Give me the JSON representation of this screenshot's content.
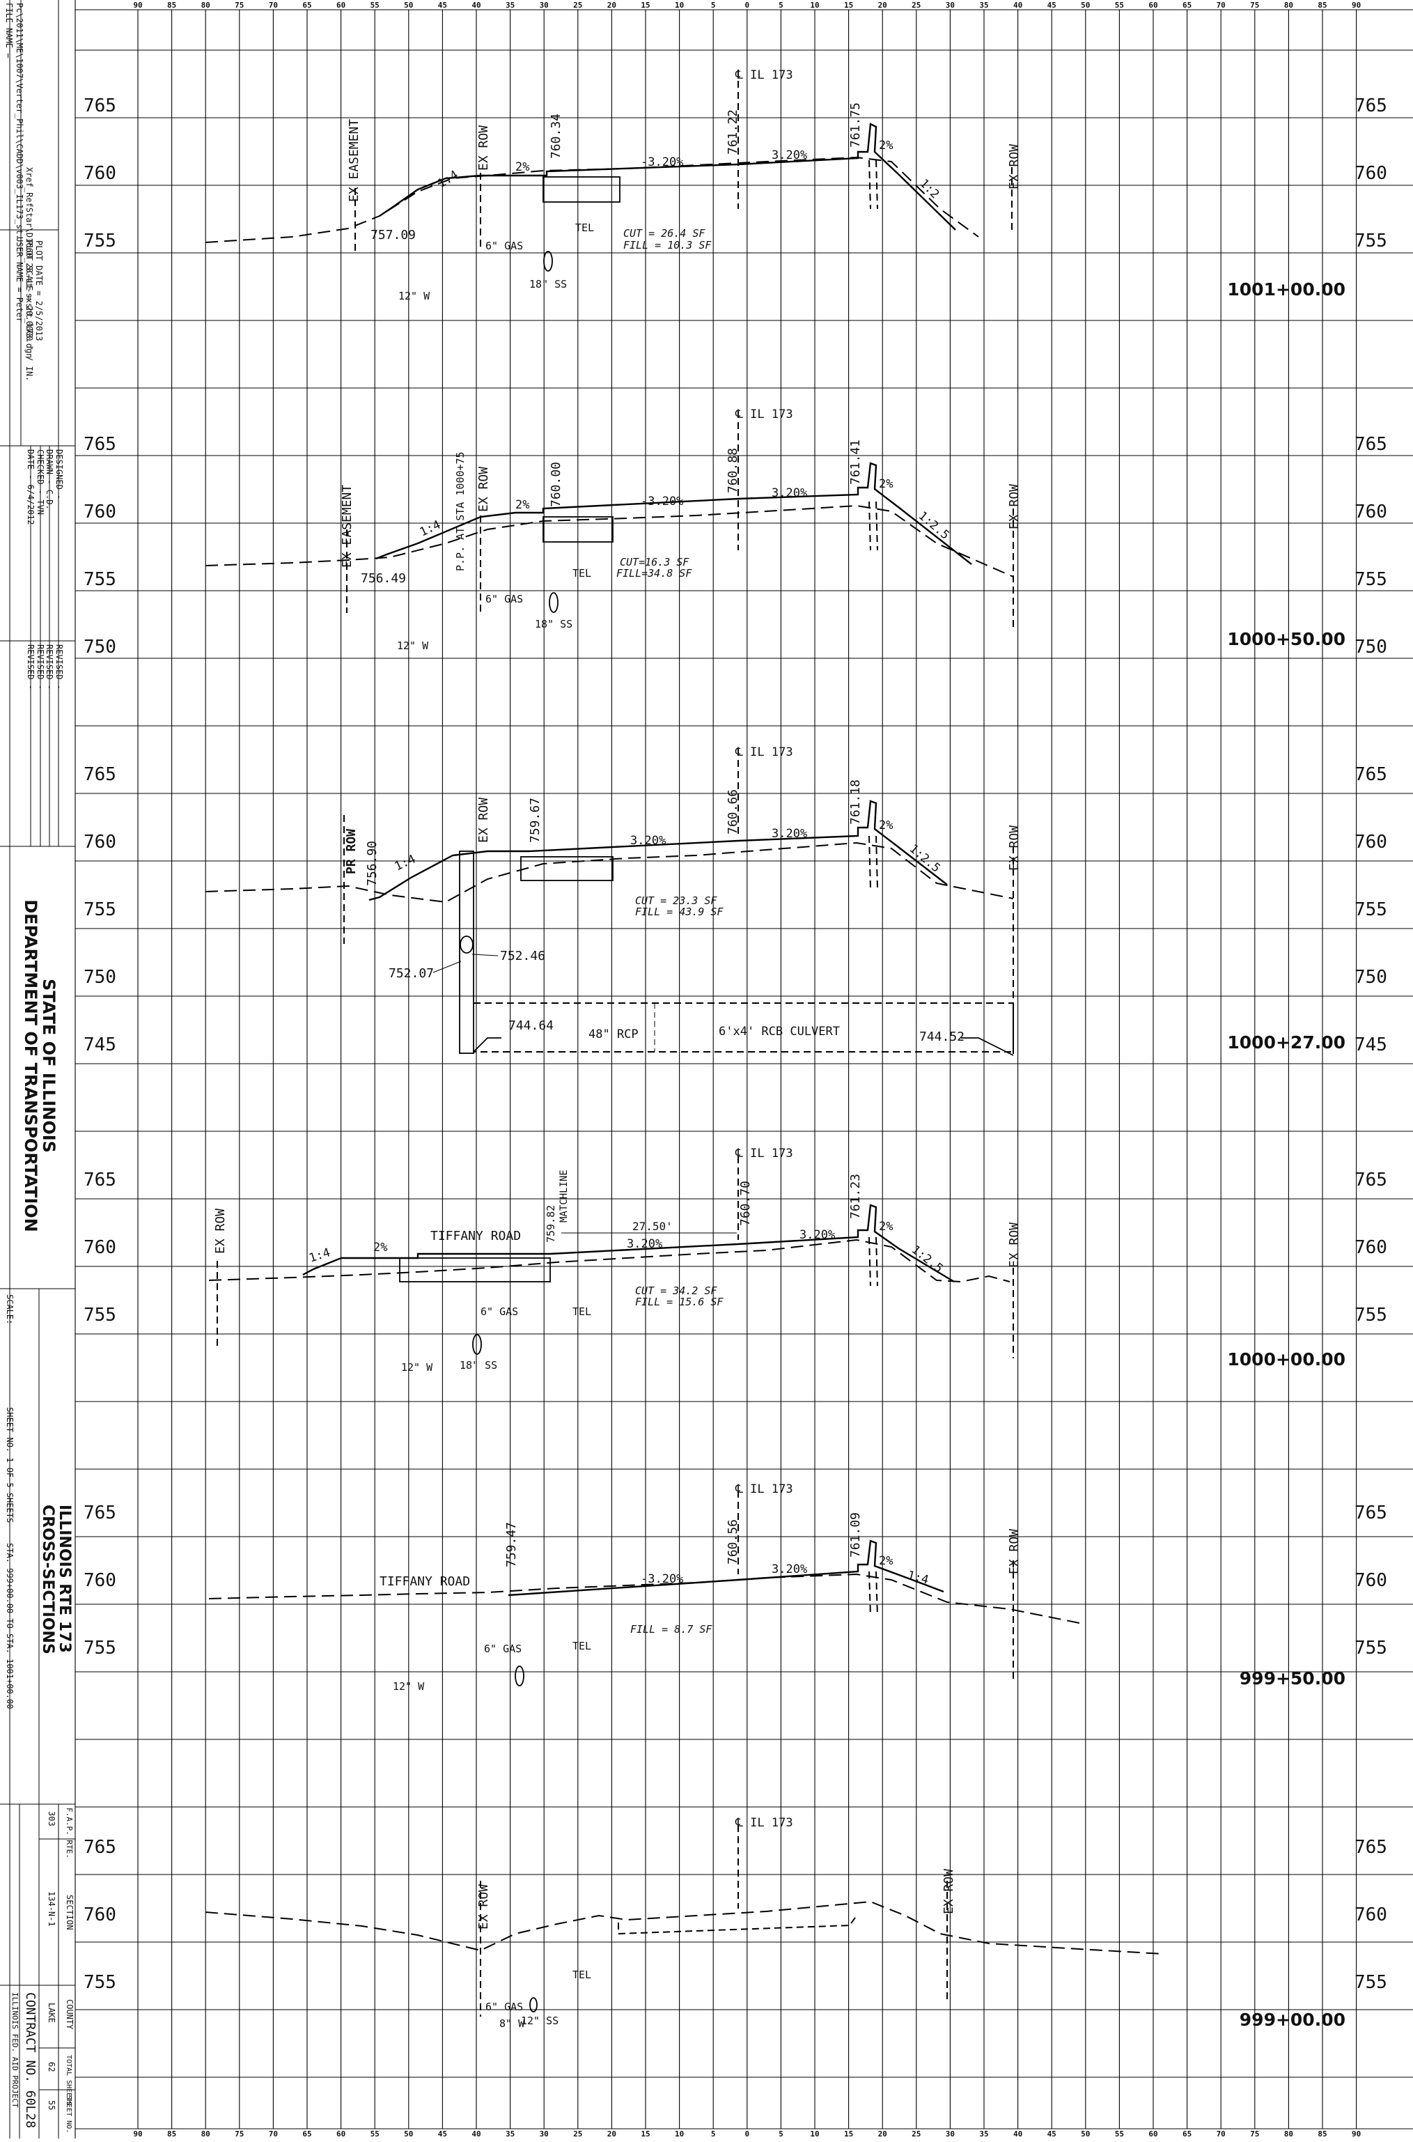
{
  "title_block": {
    "file_name": "FILE NAME =",
    "file_path": "Pc\\2011\\ME\\1007\\Verter_Phil\\CADD\\v003_IL173_st.",
    "ref_path": "Xref_RefStar\\D1660_28-st-sxsht_l73.dgn",
    "user_name": "USER NAME = Peter",
    "plot_scale": "PLOT SCALE = 20.0000 ' / IN.",
    "plot_date": "PLOT DATE = 2/5/2013",
    "designed": "DESIGNED  -",
    "drawn": "DRAWN  -  C.D.",
    "checked": "CHECKED  -  TVN",
    "date": "DATE  -  6/4/2012",
    "revised": "REVISED  -",
    "dept_line1": "STATE OF ILLINOIS",
    "dept_line2": "DEPARTMENT OF TRANSPORTATION",
    "scale": "SCALE:",
    "sheet_no": "SHEET NO. 1  OF 5  SHEETS",
    "sta_range": "STA. 999+00.00  TO STA. 1001+00.00",
    "project_title1": "ILLINOIS RTE 173",
    "project_title2": "CROSS-SECTIONS",
    "fap_rte_label": "F.A.P. RTE.",
    "fap_rte": "303",
    "section_label": "SECTION",
    "section": "134-N-1",
    "county_label": "COUNTY",
    "county": "LAKE",
    "total_sheets_label": "TOTAL SHEETS",
    "total_sheets": "62",
    "sheet_no_label": "SHEET NO.",
    "sheet_number": "55",
    "contract": "CONTRACT NO. 60L28",
    "fed_aid": "ILLINOIS FED. AID PROJECT"
  },
  "offset_axis": {
    "top": [
      "90",
      "85",
      "80",
      "75",
      "70",
      "65",
      "60",
      "55",
      "50",
      "45",
      "40",
      "35",
      "30",
      "25",
      "20",
      "15",
      "10",
      "5",
      "0",
      "5",
      "10",
      "15",
      "20",
      "25",
      "30",
      "35",
      "40",
      "45",
      "50",
      "55",
      "60",
      "65",
      "70",
      "75",
      "80",
      "85",
      "90"
    ],
    "bottom": [
      "90",
      "85",
      "80",
      "75",
      "70",
      "65",
      "60",
      "55",
      "50",
      "45",
      "40",
      "35",
      "30",
      "25",
      "20",
      "15",
      "10",
      "5",
      "0",
      "5",
      "10",
      "15",
      "20",
      "25",
      "30",
      "35",
      "40",
      "45",
      "50",
      "55",
      "60",
      "65",
      "70",
      "75",
      "80",
      "85",
      "90"
    ]
  },
  "sections": [
    {
      "station": "1001+00.00",
      "centerline": "℄ IL 173",
      "elev_labels_left": [
        "765",
        "760",
        "755"
      ],
      "elev_labels_right": [
        "765",
        "760",
        "755"
      ],
      "elevations": {
        "left_toe": "757.09",
        "edge": "760.34",
        "crown": "761.22",
        "curb": "761.75"
      },
      "slopes": {
        "left_fs": "1:4",
        "shoulder": "2%",
        "lane_left": "-3.20%",
        "lane_right": "3.20%",
        "right_shoulder": "2%",
        "right_fs": "1:2"
      },
      "labels": {
        "easement": "EX EASEMENT",
        "row_left": "EX ROW",
        "row_right": "EX ROW"
      },
      "quantities": {
        "cut": "CUT = 26.4 SF",
        "fill": "FILL = 10.3 SF"
      },
      "utilities": {
        "gas": "6\" GAS",
        "tel": "TEL",
        "water": "12\" W",
        "sewer": "18\" SS"
      }
    },
    {
      "station": "1000+50.00",
      "centerline": "℄ IL 173",
      "elev_labels_left": [
        "765",
        "760",
        "755",
        "750"
      ],
      "elev_labels_right": [
        "765",
        "760",
        "755",
        "750"
      ],
      "elevations": {
        "left_toe": "756.49",
        "edge": "760.00",
        "crown": "760.88",
        "curb": "761.41"
      },
      "slopes": {
        "left_fs": "1:4",
        "shoulder": "2%",
        "lane_left": "-3.20%",
        "lane_right": "3.20%",
        "right_shoulder": "2%",
        "right_fs": "1:2.5"
      },
      "labels": {
        "easement": "EX EASEMENT",
        "row_left": "EX ROW",
        "row_right": "EX ROW",
        "pp": "P.P. AT STA 1000+75"
      },
      "quantities": {
        "cut": "CUT=16.3 SF",
        "fill": "FILL=34.8 SF"
      },
      "utilities": {
        "gas": "6\" GAS",
        "tel": "TEL",
        "water": "12\" W",
        "sewer": "18\" SS"
      }
    },
    {
      "station": "1000+27.00",
      "centerline": "℄ IL 173",
      "elev_labels_left": [
        "765",
        "760",
        "755",
        "750",
        "745"
      ],
      "elev_labels_right": [
        "765",
        "760",
        "755",
        "750",
        "745"
      ],
      "elevations": {
        "left_toe": "756.90",
        "edge": "759.67",
        "crown": "760.66",
        "curb": "761.18",
        "inlet_left": "752.07",
        "inlet_right": "752.46",
        "inv_left": "744.64",
        "inv_right": "744.52"
      },
      "slopes": {
        "left_fs": "1:4",
        "lane_left": "3.20%",
        "lane_right": "3.20%",
        "right_shoulder": "2%",
        "right_fs": "1:2.5"
      },
      "labels": {
        "pr_row": "PR ROW",
        "row_left": "EX ROW",
        "row_right": "EX ROW",
        "pipe": "48\" RCP",
        "culvert": "6'x4' RCB CULVERT"
      },
      "quantities": {
        "cut": "CUT = 23.3 SF",
        "fill": "FILL = 43.9 SF"
      }
    },
    {
      "station": "1000+00.00",
      "centerline": "℄ IL 173",
      "elev_labels_left": [
        "765",
        "760",
        "755"
      ],
      "elev_labels_right": [
        "765",
        "760",
        "755"
      ],
      "elevations": {
        "edge": "759.82",
        "crown": "760.70",
        "curb": "761.23"
      },
      "slopes": {
        "left_fs": "1:4",
        "shoulder": "2%",
        "lane_left": "3.20%",
        "lane_right": "3.20%",
        "right_shoulder": "2%",
        "right_fs": "1:2.5"
      },
      "labels": {
        "row_left": "EX ROW",
        "row_right": "EX ROW",
        "road": "TIFFANY ROAD",
        "matchline": "MATCHLINE",
        "dim": "27.50'"
      },
      "quantities": {
        "cut": "CUT = 34.2 SF",
        "fill": "FILL = 15.6 SF"
      },
      "utilities": {
        "gas": "6\" GAS",
        "tel": "TEL",
        "water": "12\" W",
        "sewer": "18\" SS"
      }
    },
    {
      "station": "999+50.00",
      "centerline": "℄ IL 173",
      "elev_labels_left": [
        "765",
        "760",
        "755"
      ],
      "elev_labels_right": [
        "765",
        "760",
        "755"
      ],
      "elevations": {
        "edge": "759.47",
        "crown": "760.56",
        "curb": "761.09"
      },
      "slopes": {
        "lane_left": "-3.20%",
        "lane_right": "3.20%",
        "right_shoulder": "2%",
        "right_fs": "1:4"
      },
      "labels": {
        "row_right": "EX ROW",
        "road": "TIFFANY ROAD"
      },
      "quantities": {
        "fill": "FILL = 8.7 SF"
      },
      "utilities": {
        "gas": "6\" GAS",
        "tel": "TEL",
        "water": "12\" W"
      }
    },
    {
      "station": "999+00.00",
      "centerline": "℄ IL 173",
      "elev_labels_left": [
        "765",
        "760",
        "755"
      ],
      "elev_labels_right": [
        "765",
        "760",
        "755"
      ],
      "labels": {
        "row_left": "EX ROW",
        "row_right": "EX ROW"
      },
      "utilities": {
        "gas": "6\" GAS",
        "tel": "TEL",
        "water": "8\" W",
        "sewer": "12\" SS"
      }
    }
  ]
}
